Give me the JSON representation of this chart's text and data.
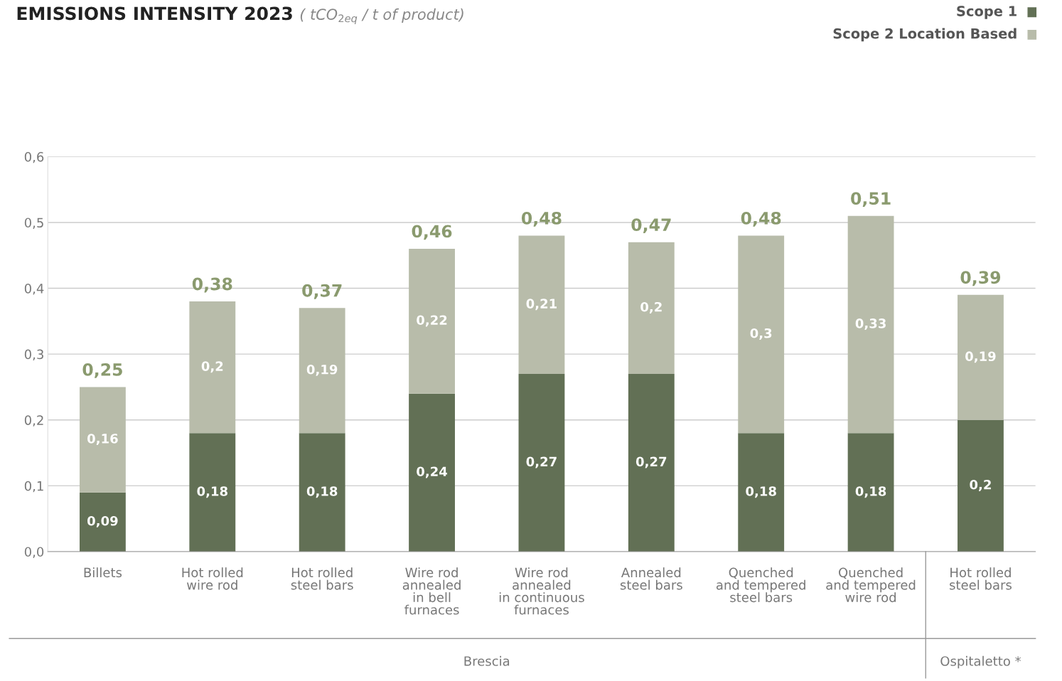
{
  "chart_data": {
    "type": "bar",
    "title": "EMISSIONS INTENSITY 2023",
    "subtitle": "( tCO$_{2eq}$ / t of product)",
    "categories": [
      "Billets",
      "Hot rolled\nwire rod",
      "Hot rolled\nsteel bars",
      "Wire rod\nannealed\nin bell\nfurnaces",
      "Wire rod\nannealed\nin continuous\nfurnaces",
      "Annealed\nsteel bars",
      "Quenched\nand tempered\nsteel bars",
      "Quenched\nand tempered\nwire rod",
      "Hot rolled\nsteel bars"
    ],
    "stacked": true,
    "series": [
      {
        "name": "Scope 1",
        "color": "#627055",
        "values": [
          0.09,
          0.18,
          0.18,
          0.24,
          0.27,
          0.27,
          0.18,
          0.18,
          0.2
        ],
        "value_labels": [
          "0,09",
          "0,18",
          "0,18",
          "0,24",
          "0,27",
          "0,27",
          "0,18",
          "0,18",
          "0,2"
        ]
      },
      {
        "name": "Scope 2 Location Based",
        "color": "#b8bcaa",
        "values": [
          0.16,
          0.2,
          0.19,
          0.22,
          0.21,
          0.2,
          0.3,
          0.33,
          0.19
        ],
        "value_labels": [
          "0,16",
          "0,2",
          "0,19",
          "0,22",
          "0,21",
          "0,2",
          "0,3",
          "0,33",
          "0,19"
        ]
      }
    ],
    "totals": [
      "0,25",
      "0,38",
      "0,37",
      "0,46",
      "0,48",
      "0,47",
      "0,48",
      "0,51",
      "0,39"
    ],
    "ylim": [
      0,
      0.6
    ],
    "yticks": [
      {
        "value": 0,
        "label": "0,0"
      },
      {
        "value": 0.1,
        "label": "0,1"
      },
      {
        "value": 0.2,
        "label": "0,2"
      },
      {
        "value": 0.3,
        "label": "0,3"
      },
      {
        "value": 0.4,
        "label": "0,4"
      },
      {
        "value": 0.5,
        "label": "0,5"
      },
      {
        "value": 0.6,
        "label": "0,6"
      }
    ],
    "grid": "y",
    "legend": "top right",
    "annotations": [
      "Brescia",
      "Ospitaletto *"
    ]
  }
}
